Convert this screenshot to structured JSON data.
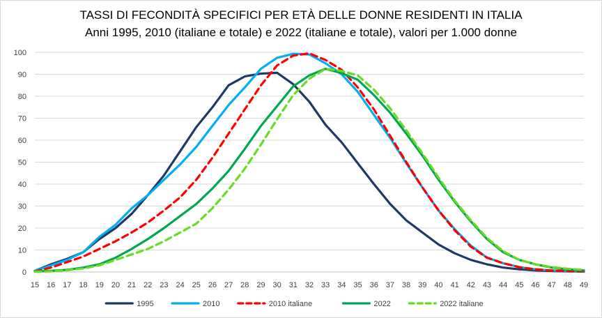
{
  "chart_data": {
    "type": "line",
    "title": "TASSI DI FECONDITÀ SPECIFICI PER ETÀ DELLE DONNE RESIDENTI IN ITALIA",
    "subtitle": "Anni 1995, 2010 (italiane e totale) e 2022 (italiane e totale), valori per 1.000 donne",
    "xlabel": "",
    "ylabel": "",
    "ylim": [
      0,
      100
    ],
    "yticks": [
      0,
      10,
      20,
      30,
      40,
      50,
      60,
      70,
      80,
      90,
      100
    ],
    "grid": true,
    "legend_position": "bottom",
    "x": [
      "15",
      "16",
      "17",
      "18",
      "19",
      "20",
      "21",
      "22",
      "23",
      "24",
      "25",
      "26",
      "27",
      "28",
      "29",
      "30",
      "31",
      "32",
      "33",
      "34",
      "35",
      "36",
      "37",
      "38",
      "39",
      "40",
      "41",
      "42",
      "43",
      "44",
      "45",
      "46",
      "47",
      "48",
      "49"
    ],
    "series": [
      {
        "name": "1995",
        "color": "#1f3864",
        "dash": "solid",
        "values": [
          0.5,
          3.5,
          6,
          9,
          15,
          20,
          26.5,
          35,
          44,
          55,
          66,
          75,
          85,
          89,
          90.3,
          90.7,
          85.5,
          77.5,
          67,
          59,
          49.5,
          40,
          31,
          23.5,
          18,
          12.5,
          8.5,
          5.5,
          3.5,
          2,
          1.2,
          0.7,
          0.4,
          0.3,
          0.2
        ]
      },
      {
        "name": "2010",
        "color": "#00b0f0",
        "dash": "solid",
        "values": [
          0.5,
          3,
          5.5,
          9,
          16,
          21.5,
          29,
          35,
          42,
          49,
          57,
          66.5,
          76,
          84,
          92.5,
          97.5,
          99.3,
          99,
          95,
          90,
          82,
          71.5,
          61,
          49.5,
          38.5,
          28,
          19.5,
          12,
          6.5,
          4,
          2.2,
          1.2,
          0.7,
          0.4,
          0.3
        ]
      },
      {
        "name": "2010 italiane",
        "color": "#ff0000",
        "dash": "dashed",
        "values": [
          0.2,
          2,
          4.5,
          7,
          10.5,
          14,
          18,
          22.5,
          28,
          34,
          42,
          52,
          63,
          74,
          85,
          94,
          98.5,
          99.5,
          96.5,
          92,
          84,
          74,
          62,
          50,
          38.5,
          28,
          19,
          11.5,
          6.5,
          4,
          2.2,
          1.2,
          0.7,
          0.4,
          0.3
        ]
      },
      {
        "name": "2022",
        "color": "#00a651",
        "dash": "solid",
        "values": [
          0.2,
          0.5,
          1,
          2,
          3.5,
          6.5,
          10.5,
          15,
          20,
          25.5,
          31,
          38,
          46,
          56,
          66.5,
          75.5,
          84.5,
          89.5,
          92.5,
          90.5,
          87.5,
          80.5,
          72.5,
          63,
          53,
          42,
          32,
          23,
          15,
          9,
          5.5,
          3.5,
          2,
          1.2,
          0.7
        ]
      },
      {
        "name": "2022 italiane",
        "color": "#66dd22",
        "dash": "dashed",
        "values": [
          0.1,
          0.3,
          0.8,
          1.6,
          3,
          5.5,
          8,
          10.5,
          14,
          18,
          22,
          29,
          37.5,
          47,
          58,
          69.5,
          80.5,
          88,
          92.5,
          91.5,
          89.5,
          83,
          74.5,
          64.5,
          54,
          43,
          32.5,
          23.5,
          15.5,
          9.5,
          5.5,
          3.5,
          2.2,
          1.5,
          1
        ]
      }
    ]
  }
}
